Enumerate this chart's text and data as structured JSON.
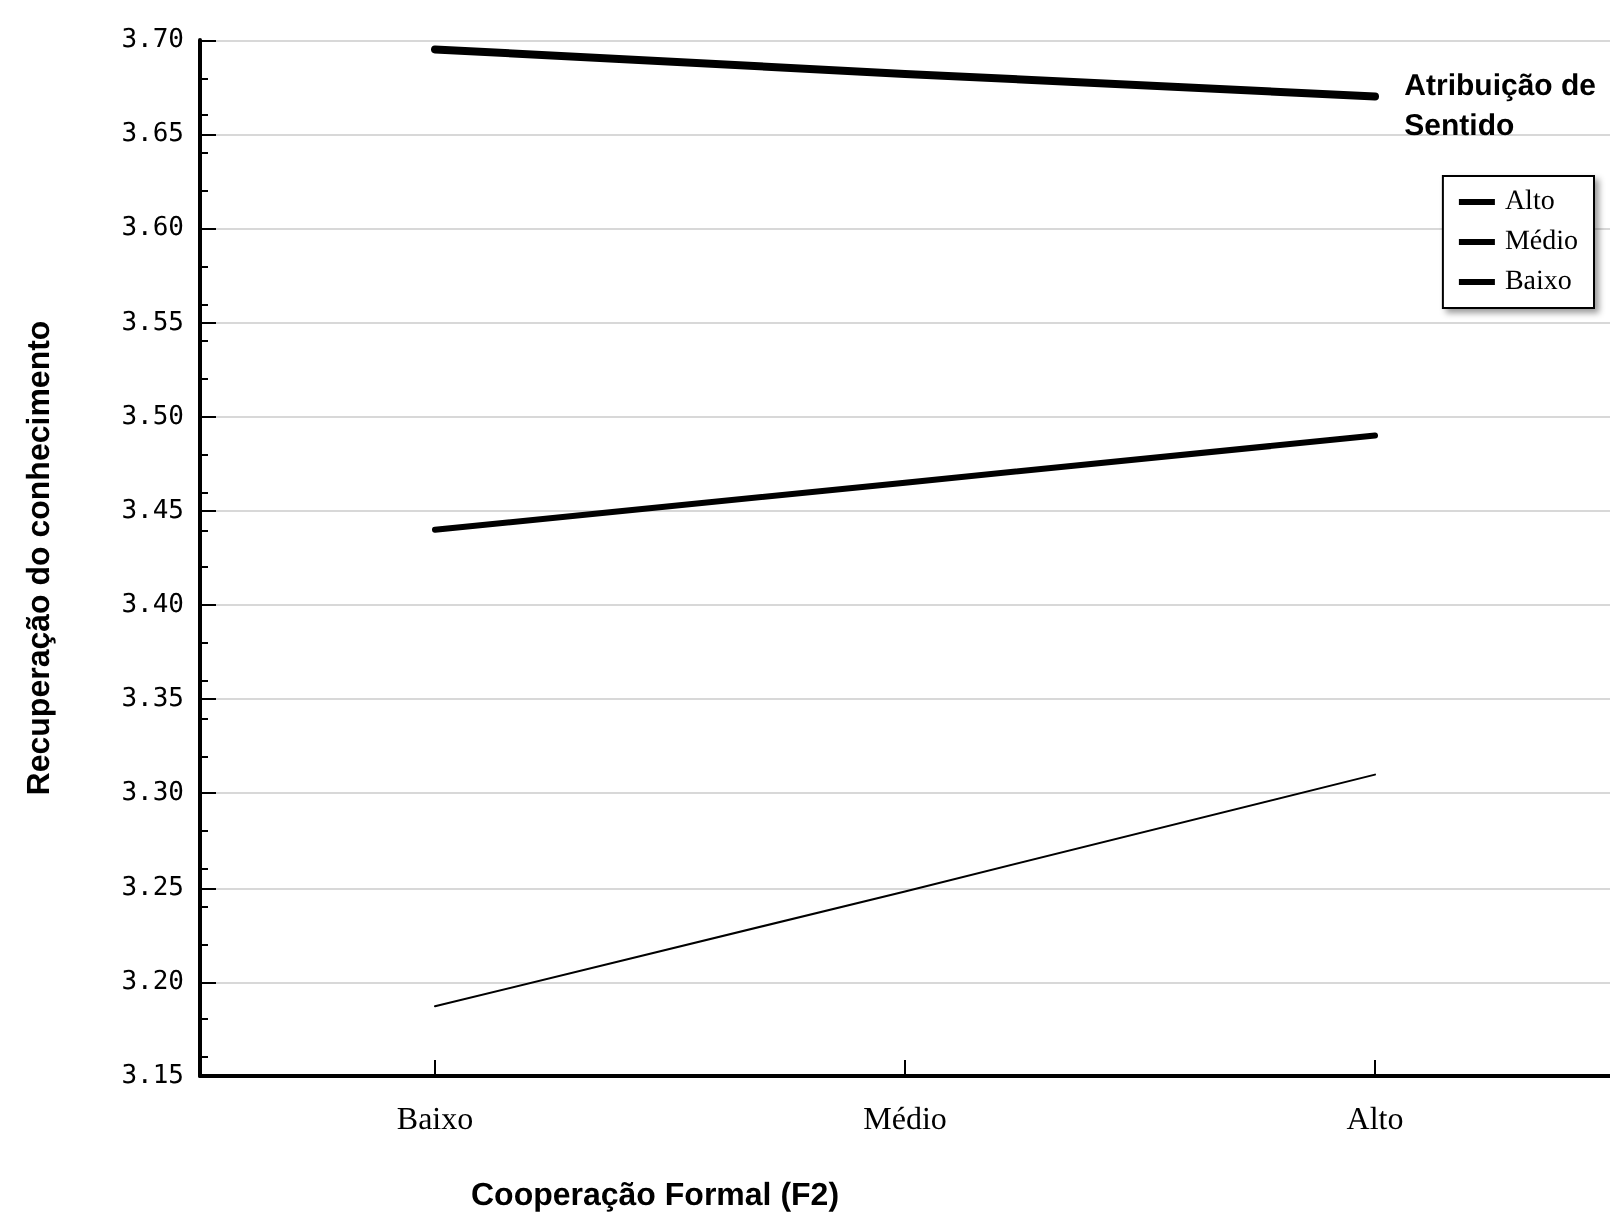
{
  "chart_data": {
    "type": "line",
    "xlabel": "Cooperação Formal (F2)",
    "ylabel": "Recuperação do conhecimento",
    "legend_title": "Atribuição de Sentido",
    "categories": [
      "Baixo",
      "Médio",
      "Alto"
    ],
    "series": [
      {
        "name": "Alto",
        "color": "#000000",
        "values": [
          3.695,
          3.682,
          3.67
        ]
      },
      {
        "name": "Médio",
        "color": "#000000",
        "values": [
          3.44,
          3.465,
          3.49
        ]
      },
      {
        "name": "Baixo",
        "color": "#000000",
        "values": [
          3.187,
          3.248,
          3.31
        ]
      }
    ],
    "ylim": [
      3.15,
      3.7
    ],
    "yticks": [
      3.15,
      {
        "value": 3.2,
        "label": "3.20"
      },
      3.25,
      {
        "value": 3.3,
        "label": "3.30"
      },
      3.35,
      {
        "value": 3.4,
        "label": "3.40"
      },
      3.45,
      {
        "value": 3.5,
        "label": "3.50"
      },
      3.55,
      {
        "value": 3.6,
        "label": "3.60"
      },
      3.65,
      {
        "value": 3.7,
        "label": "3.70"
      }
    ],
    "grid": "y",
    "legend": "top right",
    "marker": "none",
    "line_style": "solid"
  }
}
